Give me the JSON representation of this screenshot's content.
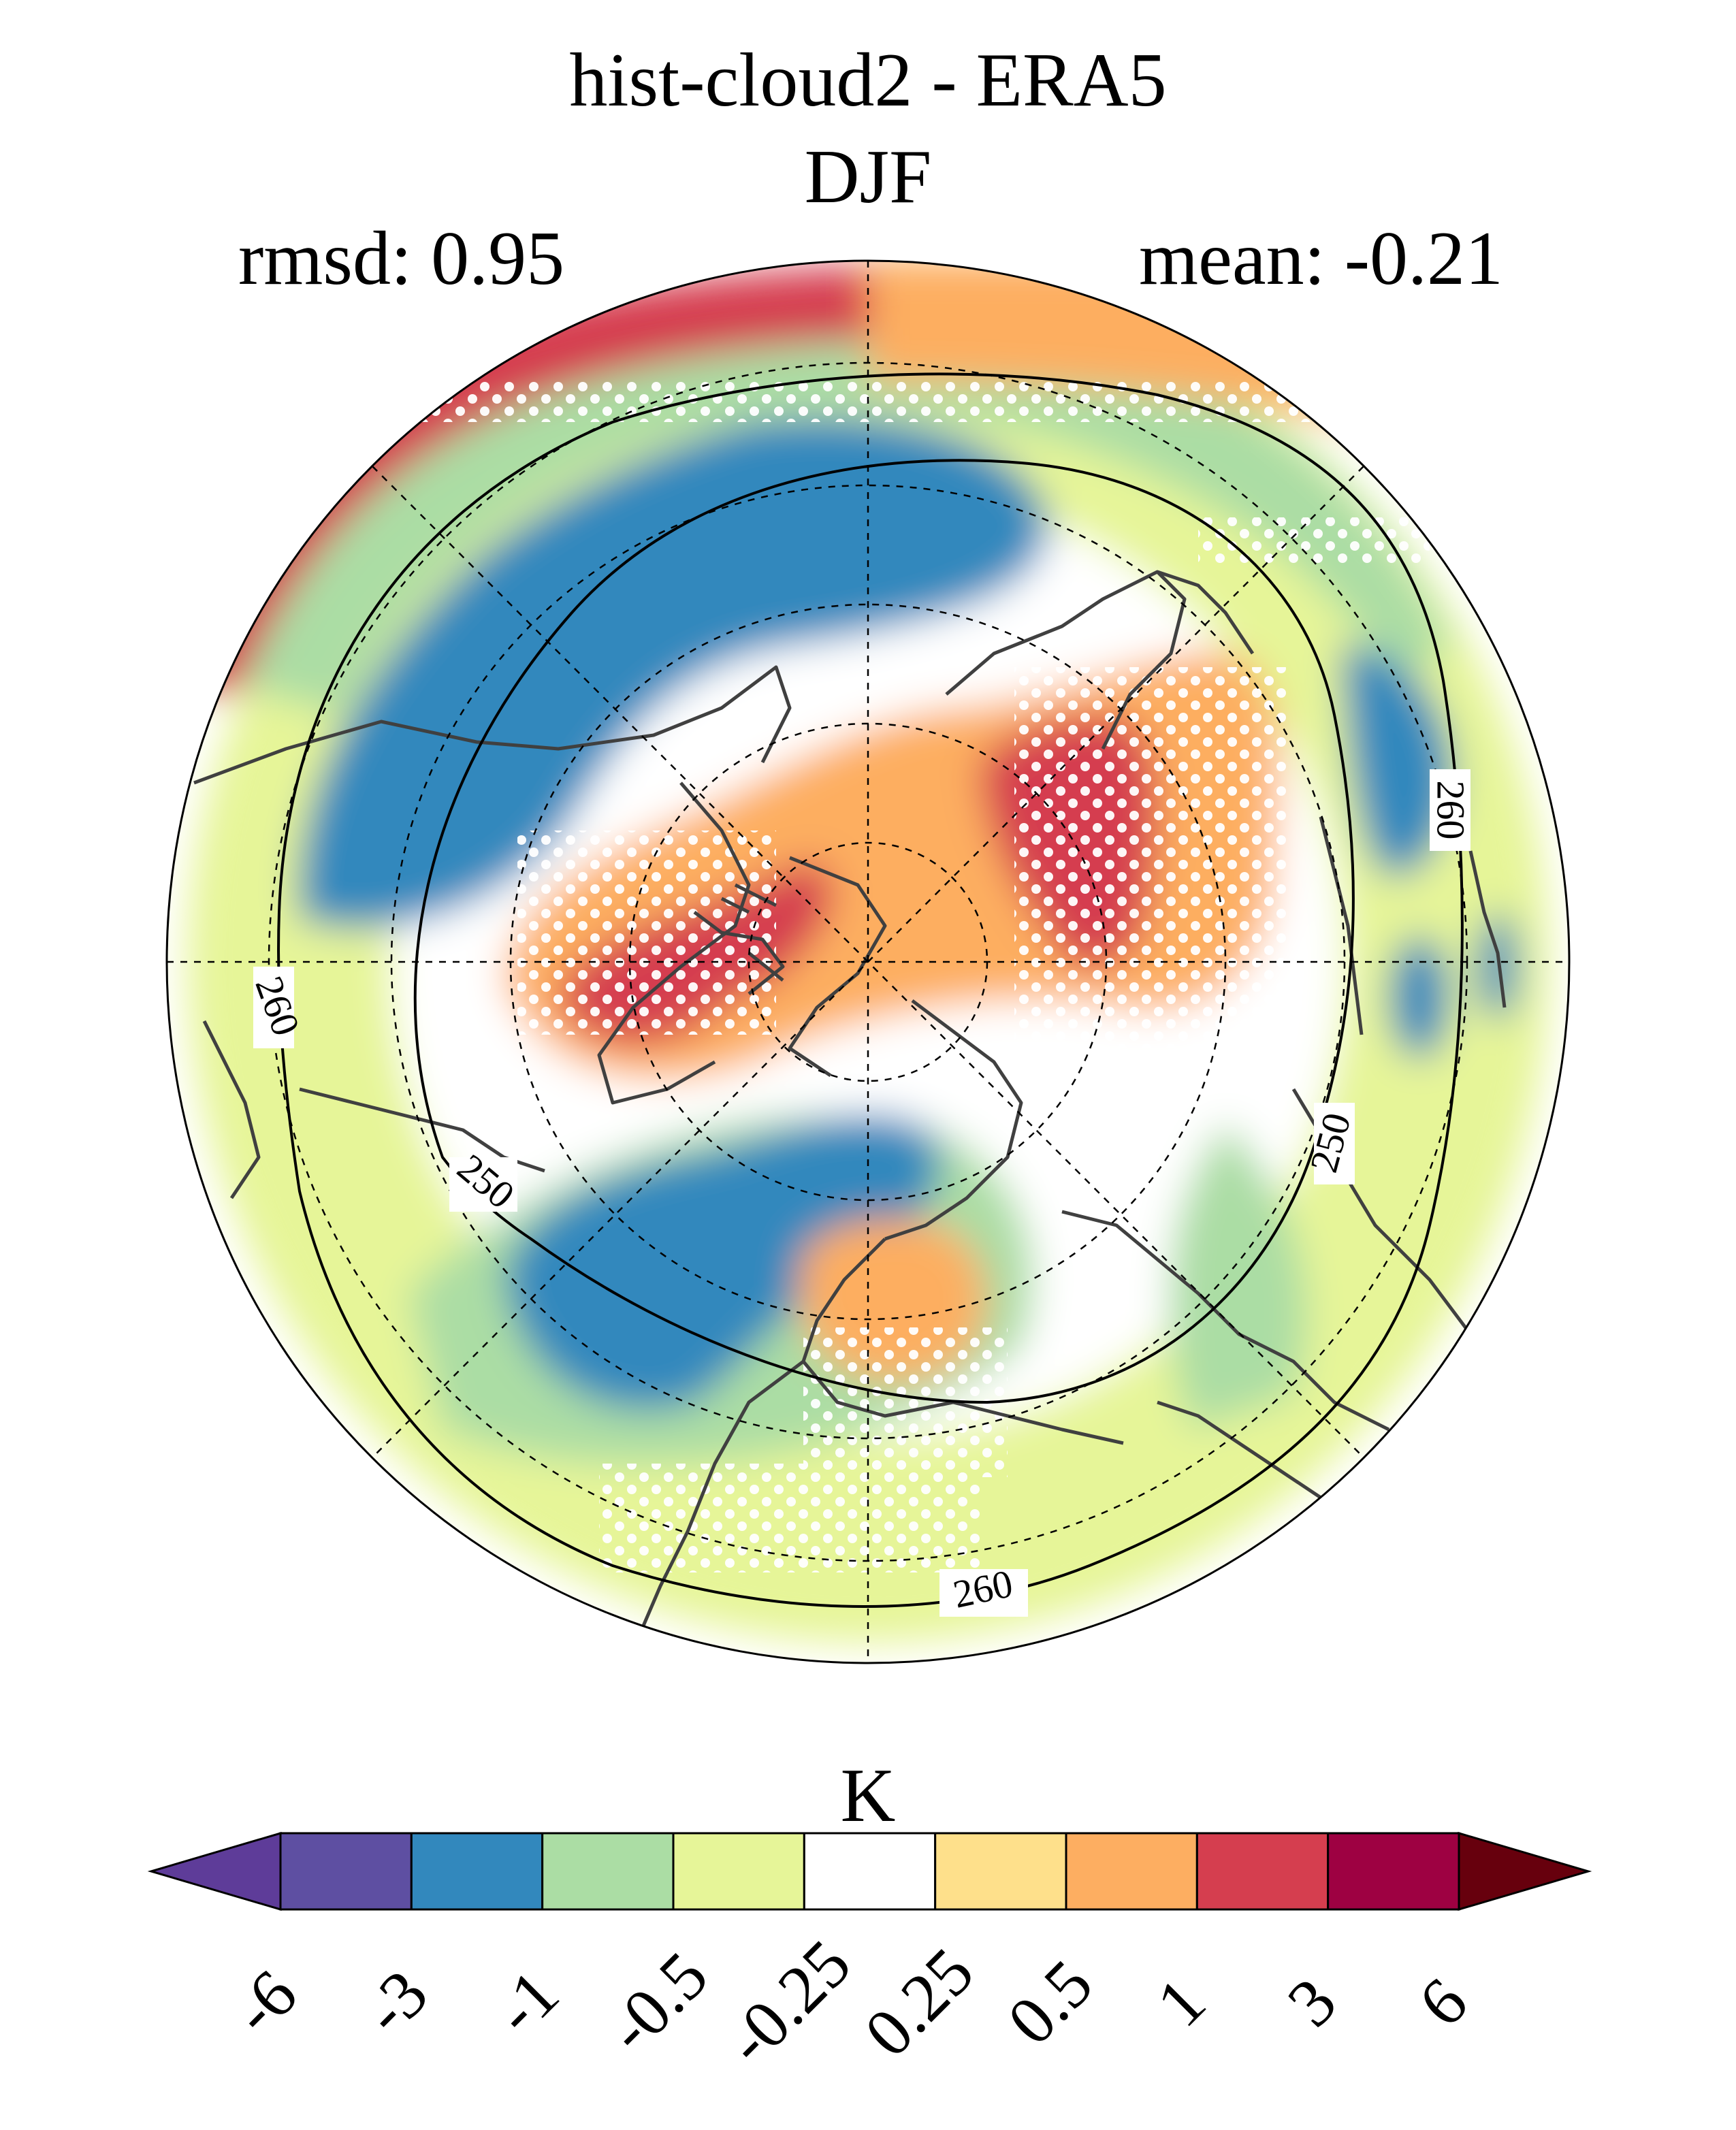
{
  "figure": {
    "title": "hist-cloud2 - ERA5",
    "season": "DJF",
    "rmsd_text": "rmsd: 0.95",
    "mean_text": "mean: -0.21"
  },
  "map": {
    "projection": "north-polar-stereographic",
    "contour_labels": [
      "260",
      "260",
      "250",
      "250",
      "260"
    ],
    "stippling": "white dots"
  },
  "colorbar": {
    "unit": "K",
    "tick_labels": [
      "-6",
      "-3",
      "-1",
      "-0.5",
      "-0.25",
      "0.25",
      "0.5",
      "1",
      "3",
      "6"
    ],
    "colors": [
      "#5e3c99",
      "#5e4fa2",
      "#3288bd",
      "#abdda4",
      "#e6f598",
      "#ffffff",
      "#fee08b",
      "#fdae61",
      "#d53e4f",
      "#9e0142",
      "#67000d"
    ]
  },
  "chart_data": {
    "type": "heatmap",
    "title": "hist-cloud2 - ERA5",
    "subtitle": "DJF",
    "annotations": [
      "rmsd: 0.95",
      "mean: -0.21"
    ],
    "colorbar_label": "K",
    "levels": [
      -6,
      -3,
      -1,
      -0.5,
      -0.25,
      0.25,
      0.5,
      1,
      3,
      6
    ],
    "contour_levels": [
      250,
      260
    ]
  }
}
